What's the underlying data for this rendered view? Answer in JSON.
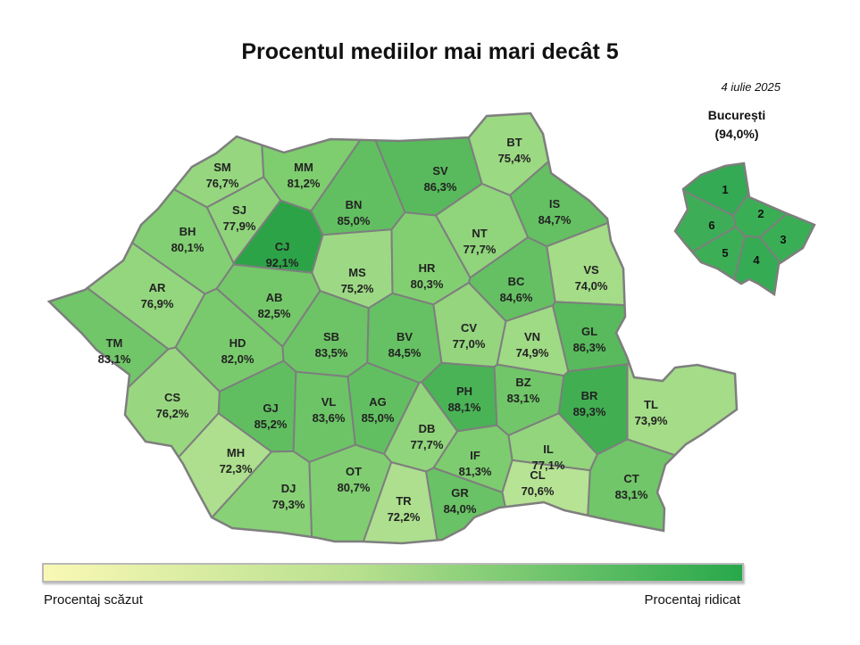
{
  "title": "Procentul mediilor mai mari decât 5",
  "date": "4 iulie 2025",
  "bucharest": {
    "name": "București",
    "value": "(94,0%)",
    "sectors": [
      {
        "id": "1",
        "color": "#33aa53"
      },
      {
        "id": "2",
        "color": "#3aae55"
      },
      {
        "id": "3",
        "color": "#3aae55"
      },
      {
        "id": "4",
        "color": "#35ab54"
      },
      {
        "id": "5",
        "color": "#3cae56"
      },
      {
        "id": "6",
        "color": "#3dae57"
      }
    ]
  },
  "legend": {
    "low": "Procentaj scăzut",
    "high": "Procentaj ridicat",
    "color_low": "#f9f8b4",
    "color_high": "#27a84a"
  },
  "counties": [
    {
      "code": "SM",
      "value": "76,7%",
      "pct": 76.7
    },
    {
      "code": "MM",
      "value": "81,2%",
      "pct": 81.2
    },
    {
      "code": "SV",
      "value": "86,3%",
      "pct": 86.3
    },
    {
      "code": "BT",
      "value": "75,4%",
      "pct": 75.4
    },
    {
      "code": "SJ",
      "value": "77,9%",
      "pct": 77.9
    },
    {
      "code": "BN",
      "value": "85,0%",
      "pct": 85.0
    },
    {
      "code": "IS",
      "value": "84,7%",
      "pct": 84.7
    },
    {
      "code": "BH",
      "value": "80,1%",
      "pct": 80.1
    },
    {
      "code": "CJ",
      "value": "92,1%",
      "pct": 92.1
    },
    {
      "code": "NT",
      "value": "77,7%",
      "pct": 77.7
    },
    {
      "code": "MS",
      "value": "75,2%",
      "pct": 75.2
    },
    {
      "code": "HR",
      "value": "80,3%",
      "pct": 80.3
    },
    {
      "code": "BC",
      "value": "84,6%",
      "pct": 84.6
    },
    {
      "code": "VS",
      "value": "74,0%",
      "pct": 74.0
    },
    {
      "code": "AR",
      "value": "76,9%",
      "pct": 76.9
    },
    {
      "code": "AB",
      "value": "82,5%",
      "pct": 82.5
    },
    {
      "code": "CV",
      "value": "77,0%",
      "pct": 77.0
    },
    {
      "code": "VN",
      "value": "74,9%",
      "pct": 74.9
    },
    {
      "code": "GL",
      "value": "86,3%",
      "pct": 86.3
    },
    {
      "code": "TM",
      "value": "83,1%",
      "pct": 83.1
    },
    {
      "code": "HD",
      "value": "82,0%",
      "pct": 82.0
    },
    {
      "code": "SB",
      "value": "83,5%",
      "pct": 83.5
    },
    {
      "code": "BV",
      "value": "84,5%",
      "pct": 84.5
    },
    {
      "code": "BZ",
      "value": "83,1%",
      "pct": 83.1
    },
    {
      "code": "BR",
      "value": "89,3%",
      "pct": 89.3
    },
    {
      "code": "TL",
      "value": "73,9%",
      "pct": 73.9
    },
    {
      "code": "CS",
      "value": "76,2%",
      "pct": 76.2
    },
    {
      "code": "GJ",
      "value": "85,2%",
      "pct": 85.2
    },
    {
      "code": "VL",
      "value": "83,6%",
      "pct": 83.6
    },
    {
      "code": "AG",
      "value": "85,0%",
      "pct": 85.0
    },
    {
      "code": "PH",
      "value": "88,1%",
      "pct": 88.1
    },
    {
      "code": "DB",
      "value": "77,7%",
      "pct": 77.7
    },
    {
      "code": "IL",
      "value": "77,1%",
      "pct": 77.1
    },
    {
      "code": "MH",
      "value": "72,3%",
      "pct": 72.3
    },
    {
      "code": "IF",
      "value": "81,3%",
      "pct": 81.3
    },
    {
      "code": "CL",
      "value": "70,6%",
      "pct": 70.6
    },
    {
      "code": "DJ",
      "value": "79,3%",
      "pct": 79.3
    },
    {
      "code": "OT",
      "value": "80,7%",
      "pct": 80.7
    },
    {
      "code": "TR",
      "value": "72,2%",
      "pct": 72.2
    },
    {
      "code": "GR",
      "value": "84,0%",
      "pct": 84.0
    },
    {
      "code": "CT",
      "value": "83,1%",
      "pct": 83.1
    }
  ]
}
